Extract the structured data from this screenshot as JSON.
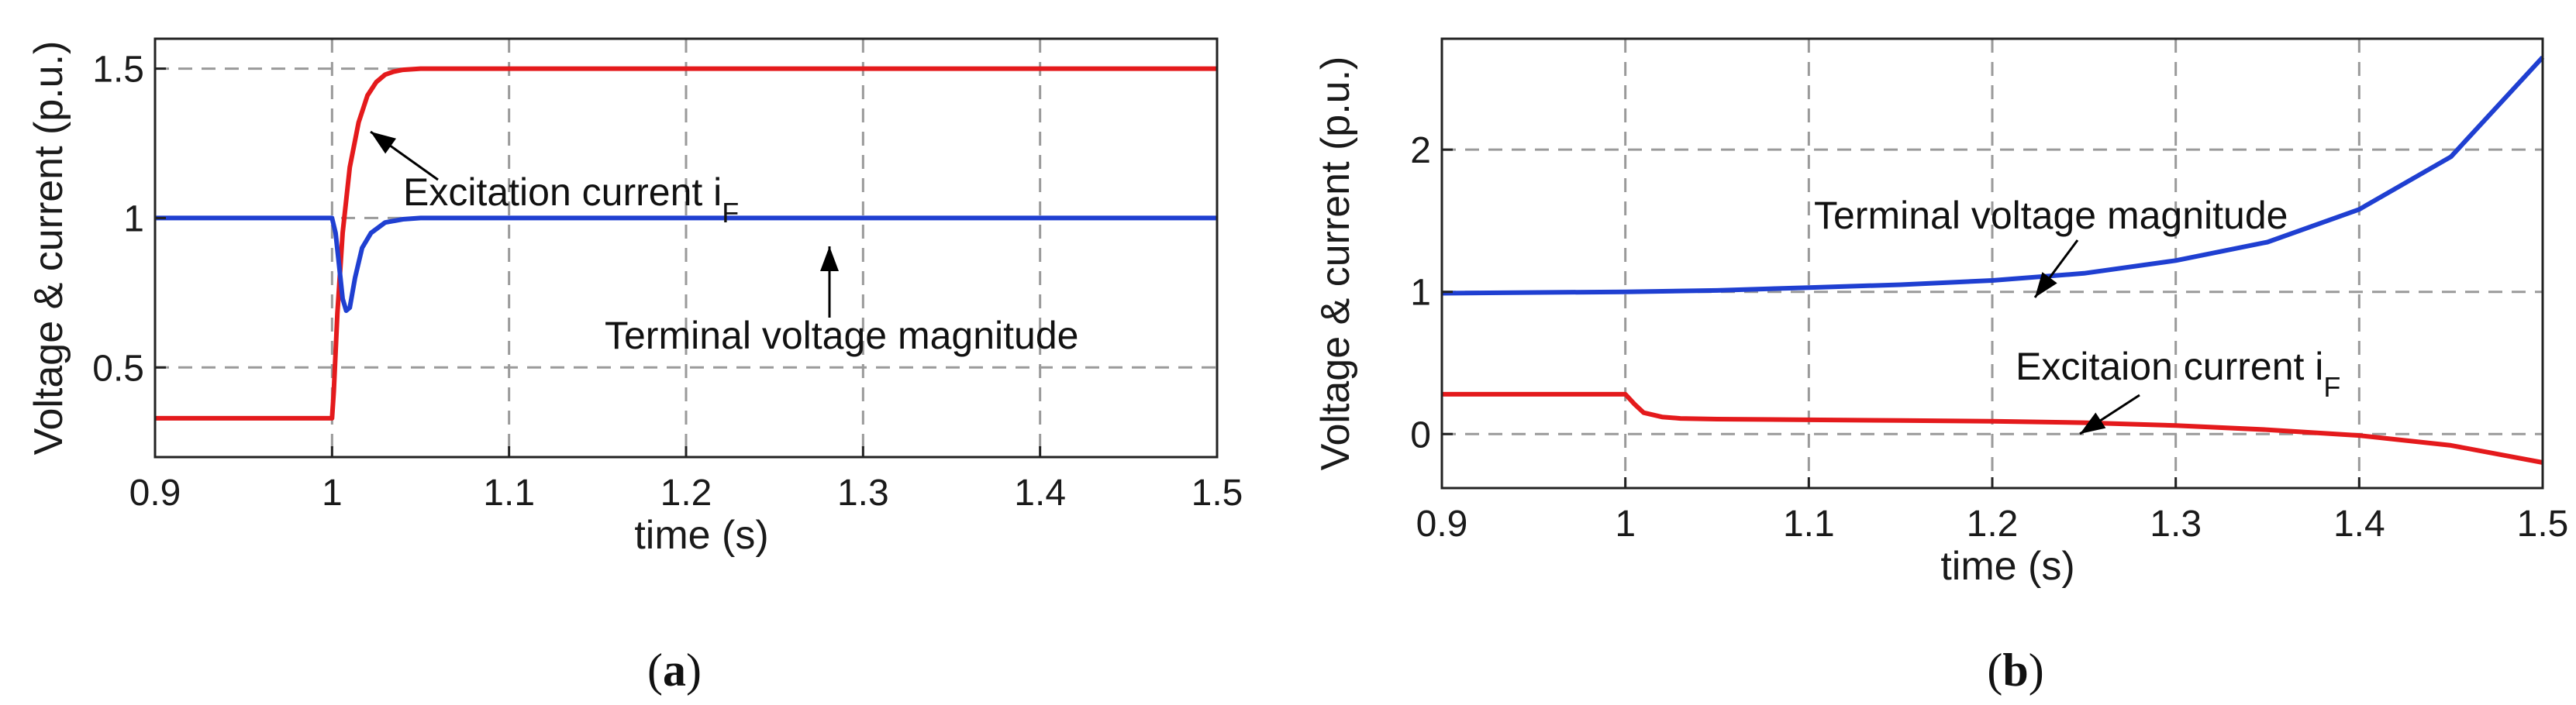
{
  "chart_data": [
    {
      "type": "line",
      "panel_label": "a",
      "xlabel": "time (s)",
      "ylabel": "Voltage & current (p.u.)",
      "xlim": [
        0.9,
        1.5
      ],
      "ylim": [
        0.2,
        1.6
      ],
      "xticks": [
        "0.9",
        "1",
        "1.1",
        "1.2",
        "1.3",
        "1.4",
        "1.5"
      ],
      "yticks": [
        "0.5",
        "1",
        "1.5"
      ],
      "grid": true,
      "series": [
        {
          "key": "excitation",
          "color": "#e41a1c",
          "x": [
            0.9,
            1.0,
            1.001,
            1.003,
            1.006,
            1.01,
            1.015,
            1.02,
            1.025,
            1.03,
            1.035,
            1.04,
            1.05,
            1.06,
            1.08,
            1.1,
            1.2,
            1.3,
            1.4,
            1.5
          ],
          "y": [
            0.33,
            0.33,
            0.42,
            0.68,
            0.95,
            1.17,
            1.32,
            1.41,
            1.455,
            1.48,
            1.49,
            1.496,
            1.5,
            1.5,
            1.5,
            1.5,
            1.5,
            1.5,
            1.5,
            1.5
          ]
        },
        {
          "key": "voltage",
          "color": "#1f3fd1",
          "x": [
            0.9,
            1.0,
            1.002,
            1.004,
            1.006,
            1.008,
            1.01,
            1.013,
            1.017,
            1.022,
            1.03,
            1.04,
            1.05,
            1.07,
            1.1,
            1.2,
            1.3,
            1.4,
            1.5
          ],
          "y": [
            1.0,
            1.0,
            0.95,
            0.84,
            0.73,
            0.69,
            0.7,
            0.8,
            0.9,
            0.95,
            0.985,
            0.996,
            1.0,
            1.0,
            1.0,
            1.0,
            1.0,
            1.0,
            1.0
          ]
        }
      ],
      "annotations": [
        {
          "text": "Excitation current i",
          "sub": "F",
          "x": 1.015,
          "y": 1.22,
          "arrow_to": [
            1.017,
            1.35
          ]
        },
        {
          "text": "Terminal voltage magnitude",
          "x": 1.15,
          "y": 0.84,
          "arrow_to": [
            1.27,
            1.0
          ]
        }
      ]
    },
    {
      "type": "line",
      "panel_label": "b",
      "xlabel": "time (s)",
      "ylabel": "Voltage & current (p.u.)",
      "xlim": [
        0.9,
        1.5
      ],
      "ylim": [
        -0.38,
        2.78
      ],
      "xticks": [
        "0.9",
        "1",
        "1.1",
        "1.2",
        "1.3",
        "1.4",
        "1.5"
      ],
      "yticks": [
        "0",
        "1",
        "2"
      ],
      "grid": true,
      "series": [
        {
          "key": "voltage",
          "color": "#1f3fd1",
          "x": [
            0.9,
            1.0,
            1.05,
            1.1,
            1.15,
            1.2,
            1.25,
            1.3,
            1.35,
            1.4,
            1.45,
            1.5
          ],
          "y": [
            0.99,
            1.0,
            1.01,
            1.03,
            1.05,
            1.08,
            1.13,
            1.22,
            1.35,
            1.58,
            1.95,
            2.65
          ]
        },
        {
          "key": "excitation",
          "color": "#e41a1c",
          "x": [
            0.9,
            1.0,
            1.005,
            1.01,
            1.02,
            1.03,
            1.05,
            1.1,
            1.15,
            1.2,
            1.25,
            1.3,
            1.35,
            1.4,
            1.45,
            1.5
          ],
          "y": [
            0.28,
            0.28,
            0.21,
            0.15,
            0.12,
            0.11,
            0.105,
            0.1,
            0.095,
            0.09,
            0.08,
            0.06,
            0.03,
            -0.01,
            -0.08,
            -0.2
          ]
        }
      ],
      "annotations": [
        {
          "text": "Terminal voltage magnitude",
          "x": 1.09,
          "y": 1.6,
          "arrow_to": [
            1.215,
            1.1
          ]
        },
        {
          "text": "Excitaion current i",
          "sub": "F",
          "x": 1.27,
          "y": 0.55,
          "arrow_to": [
            1.245,
            0.11
          ]
        }
      ]
    }
  ]
}
